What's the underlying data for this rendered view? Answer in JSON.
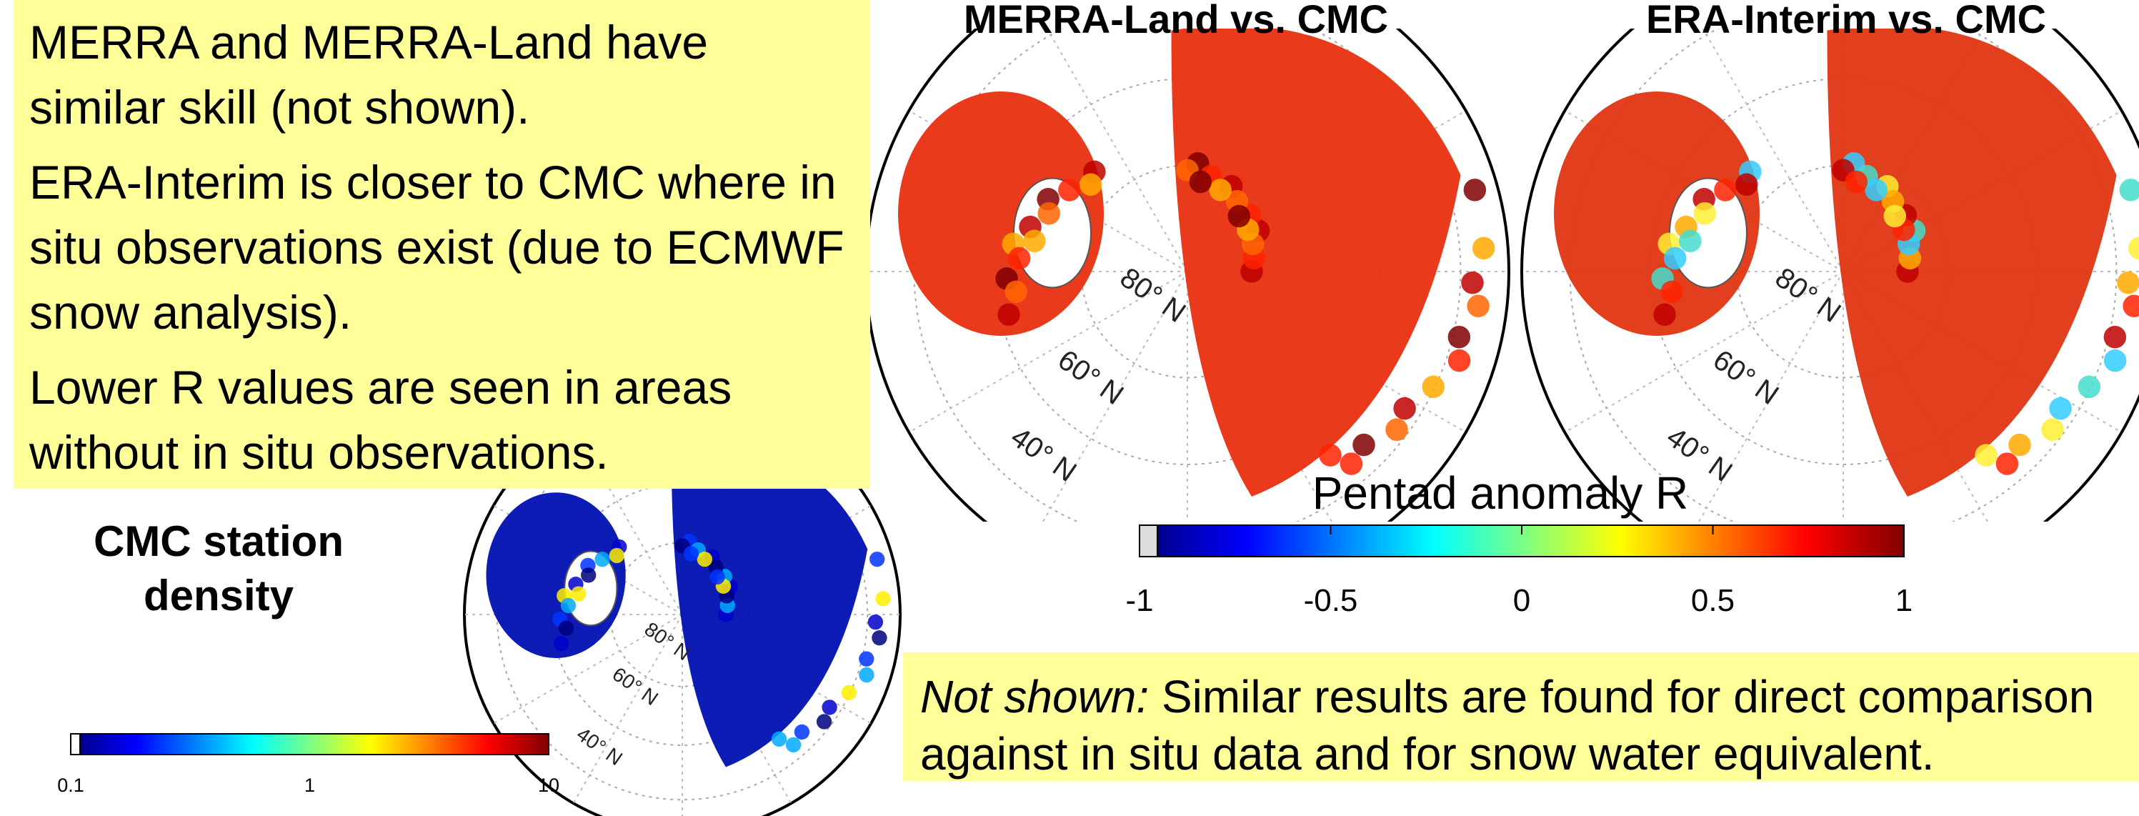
{
  "summary": {
    "paragraphs": [
      "MERRA and MERRA-Land have similar skill (not shown).",
      "ERA-Interim is closer to CMC where in situ observations exist (due to ECMWF snow analysis).",
      "Lower R values are seen in areas without in situ observations."
    ]
  },
  "maps": [
    {
      "title": "MERRA-Land vs. CMC",
      "lat_labels": [
        "80° N",
        "60° N",
        "40° N"
      ]
    },
    {
      "title": "ERA-Interim vs. CMC",
      "lat_labels": [
        "80° N",
        "60° N",
        "40° N"
      ]
    }
  ],
  "colorbar": {
    "label": "Pentad anomaly R",
    "ticks": [
      "-1",
      "-0.5",
      "0",
      "0.5",
      "1"
    ]
  },
  "note": {
    "lead": "Not shown:",
    "text": "Similar results are found for direct comparison against in situ data and for snow water equivalent."
  },
  "station_map": {
    "title": "CMC station density",
    "lat_labels": [
      "80° N",
      "60° N",
      "40° N"
    ],
    "ticks": [
      "0.1",
      "1",
      "10"
    ]
  }
}
